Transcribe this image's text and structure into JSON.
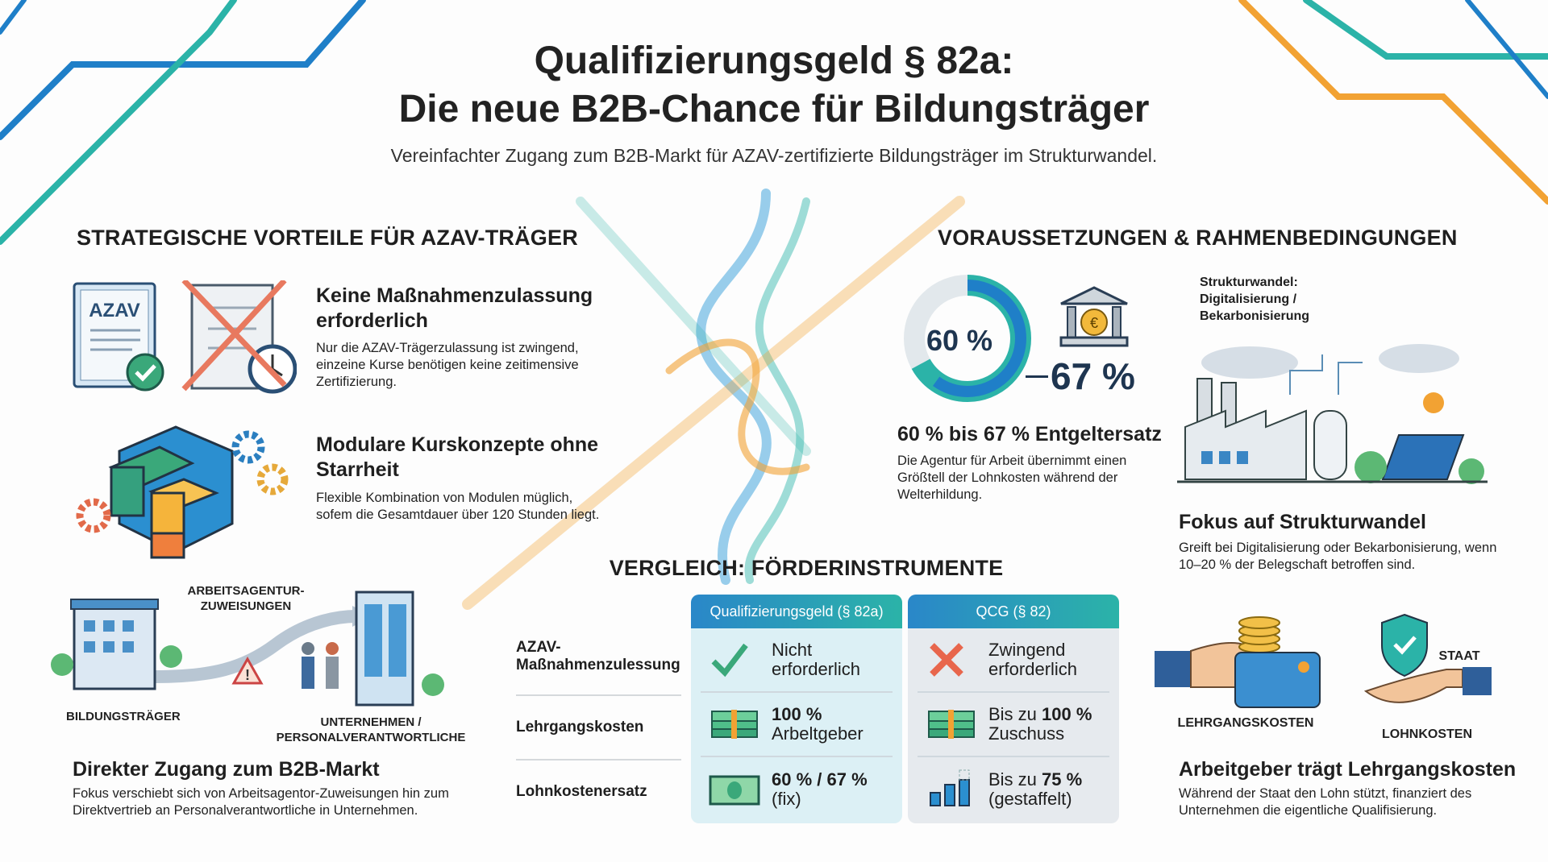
{
  "header": {
    "title_line1": "Qualifizierungsgeld § 82a:",
    "title_line2": "Die neue B2B-Chance für Bildungsträger",
    "subtitle": "Vereinfachter Zugang zum B2B-Markt für AZAV-zertifizierte Bildungsträger im Strukturwandel."
  },
  "colors": {
    "blue": "#1f7fc8",
    "teal": "#2bb3a8",
    "orange": "#f2a233",
    "red": "#e8664c",
    "green": "#3aa87a"
  },
  "left": {
    "heading": "STRATEGISCHE VORTEILE FÜR AZAV-TRÄGER",
    "block1": {
      "icon_label": "AZAV",
      "title": "Keine Maßnahmenzulassung erforderlich",
      "body": "Nur die AZAV-Trägerzulassung ist zwingend, einzeine Kurse benötigen keine zeitimensive Zertifizierung."
    },
    "block2": {
      "title": "Modulare Kurskonzepte ohne Starrheit",
      "body": "Flexible Kombination von Modulen müglich, sofem die Gesamtdauer über 120 Stunden liegt."
    },
    "block3": {
      "label_from": "BILDUNGSTRÄGER",
      "label_middle": "ARBEITSAGENTUR-\nZUWEISUNGEN",
      "label_to": "UNTERNEHMEN /\nPERSONALVERANTWORTLICHE",
      "title": "Direkter Zugang zum B2B-Markt",
      "body": "Fokus verschiebt sich von Arbeitsagentor-Zuweisungen hin zum Direktvertrieb an Personalverantwortliche in Unternehmen."
    }
  },
  "right": {
    "heading": "VORAUSSETZUNGEN & RAHMENBEDINGUNGEN",
    "donut": {
      "inner_label": "60 %",
      "outer_label": "67 %",
      "value_percent": 60,
      "max_percent": 67
    },
    "entgelt": {
      "title": "60 % bis 67 % Entgeltersatz",
      "body": "Die Agentur für Arbeit übernimmt einen Größtell der Lohnkosten während der Welterhildung."
    },
    "struktur": {
      "label": "Strukturwandel:\nDigitalisierung /\nBekarbonisierung",
      "title": "Fokus auf Strukturwandel",
      "body": "Greift bei Digitalisierung oder Bekarbonisierung, wenn 10–20 % der Belegschaft betroffen sind."
    },
    "kosten": {
      "label_lehrgang": "LEHRGANGSKOSTEN",
      "label_staat": "STAAT",
      "label_lohn": "LOHNKOSTEN",
      "title": "Arbeitgeber trägt Lehrgangskosten",
      "body": "Während der Staat den Lohn stützt, finanziert des Unternehmen die eigentliche Qualifisierung."
    }
  },
  "comparison": {
    "heading": "VERGLEICH: FÖRDERINSTRUMENTE",
    "rows": [
      "AZAV-\nMaßnahmenzulessung",
      "Lehrgangskosten",
      "Lohnkostenersatz"
    ],
    "columns": [
      {
        "header": "Qualifizierungsgeld (§ 82a)",
        "cells": [
          {
            "icon": "check-icon",
            "strong": "",
            "text": "Nicht\nerforderlich"
          },
          {
            "icon": "money-stack-icon",
            "strong": "100 %",
            "text": "Arbeltgeber"
          },
          {
            "icon": "banknote-icon",
            "strong": "60 % / 67 %",
            "text": "(fix)"
          }
        ]
      },
      {
        "header": "QCG (§ 82)",
        "cells": [
          {
            "icon": "cross-icon",
            "strong": "",
            "text": "Zwingend\nerforderlich"
          },
          {
            "icon": "money-stack-icon",
            "prefix": "Bis zu ",
            "strong": "100 %",
            "text": "Zuschuss"
          },
          {
            "icon": "bar-chart-icon",
            "prefix": "Bis zu ",
            "strong": "75 %",
            "text": "(gestaffelt)"
          }
        ]
      }
    ]
  }
}
